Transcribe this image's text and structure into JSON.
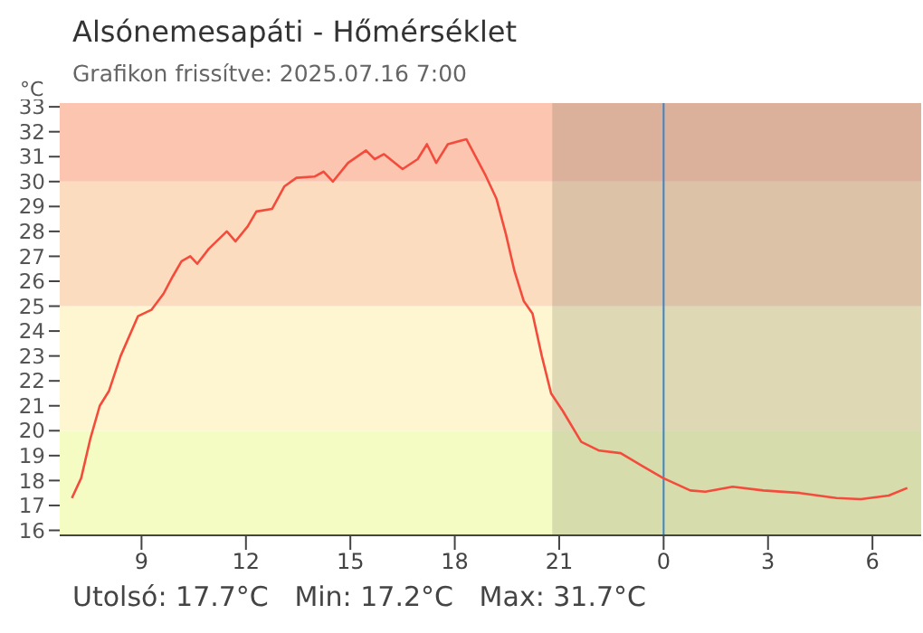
{
  "chart_data": {
    "type": "line",
    "title": "Alsónemesapáti - Hőmérséklet",
    "subtitle": "Grafikon frissítve: 2025.07.16 7:00",
    "ylabel": "°C",
    "annotations": [
      "Utolsó: 17.7°C   Min: 17.2°C   Max: 31.7°C"
    ],
    "x": [
      "2025-07-15T07:00",
      "2025-07-15T07:16",
      "2025-07-15T07:32",
      "2025-07-15T07:48",
      "2025-07-15T08:04",
      "2025-07-15T08:24",
      "2025-07-15T08:54",
      "2025-07-15T09:17",
      "2025-07-15T09:38",
      "2025-07-15T09:54",
      "2025-07-15T10:09",
      "2025-07-15T10:24",
      "2025-07-15T10:36",
      "2025-07-15T10:56",
      "2025-07-15T11:27",
      "2025-07-15T11:42",
      "2025-07-15T12:03",
      "2025-07-15T12:18",
      "2025-07-15T12:45",
      "2025-07-15T13:06",
      "2025-07-15T13:27",
      "2025-07-15T13:58",
      "2025-07-15T14:14",
      "2025-07-15T14:30",
      "2025-07-15T14:56",
      "2025-07-15T15:27",
      "2025-07-15T15:42",
      "2025-07-15T15:58",
      "2025-07-15T16:14",
      "2025-07-15T16:30",
      "2025-07-15T16:56",
      "2025-07-15T17:12",
      "2025-07-15T17:28",
      "2025-07-15T17:48",
      "2025-07-15T18:20",
      "2025-07-15T18:52",
      "2025-07-15T19:12",
      "2025-07-15T19:28",
      "2025-07-15T19:43",
      "2025-07-15T19:59",
      "2025-07-15T20:14",
      "2025-07-15T20:30",
      "2025-07-15T20:46",
      "2025-07-15T21:06",
      "2025-07-15T21:38",
      "2025-07-15T22:09",
      "2025-07-15T22:46",
      "2025-07-15T23:22",
      "2025-07-15T23:59",
      "2025-07-16T00:46",
      "2025-07-16T01:12",
      "2025-07-16T01:59",
      "2025-07-16T02:52",
      "2025-07-16T03:55",
      "2025-07-16T04:58",
      "2025-07-16T05:40",
      "2025-07-16T06:28",
      "2025-07-16T07:00"
    ],
    "series": [
      {
        "color": "#f44c3c",
        "values": [
          17.3,
          18.1,
          19.7,
          21.0,
          21.6,
          23.0,
          24.6,
          24.85,
          25.5,
          26.2,
          26.8,
          27.0,
          26.7,
          27.3,
          28.0,
          27.6,
          28.2,
          28.8,
          28.9,
          29.8,
          30.15,
          30.2,
          30.4,
          30.0,
          30.75,
          31.25,
          30.9,
          31.1,
          30.8,
          30.5,
          30.9,
          31.5,
          30.75,
          31.5,
          31.7,
          30.3,
          29.3,
          27.9,
          26.4,
          25.2,
          24.7,
          23.0,
          21.5,
          20.8,
          19.55,
          19.2,
          19.1,
          18.6,
          18.1,
          17.6,
          17.55,
          17.75,
          17.6,
          17.5,
          17.3,
          17.25,
          17.4,
          17.7
        ]
      }
    ],
    "xlim": [
      "2025-07-15T06:39",
      "2025-07-16T07:24"
    ],
    "ylim": [
      15.8,
      33.15
    ],
    "xticks": [
      {
        "value": "2025-07-15T09:00",
        "label": "9"
      },
      {
        "value": "2025-07-15T12:00",
        "label": "12"
      },
      {
        "value": "2025-07-15T15:00",
        "label": "15"
      },
      {
        "value": "2025-07-15T18:00",
        "label": "18"
      },
      {
        "value": "2025-07-15T21:00",
        "label": "21"
      },
      {
        "value": "2025-07-16T00:00",
        "label": "0"
      },
      {
        "value": "2025-07-16T03:00",
        "label": "3"
      },
      {
        "value": "2025-07-16T06:00",
        "label": "6"
      }
    ],
    "yticks": [
      16,
      17,
      18,
      19,
      20,
      21,
      22,
      23,
      24,
      25,
      26,
      27,
      28,
      29,
      30,
      31,
      32,
      33
    ],
    "bands": [
      {
        "axis": "y",
        "from": 15.8,
        "to": 20,
        "color": "#f4fcc4"
      },
      {
        "axis": "y",
        "from": 20,
        "to": 25,
        "color": "#fef6d0"
      },
      {
        "axis": "y",
        "from": 25,
        "to": 30,
        "color": "#fcdcbf"
      },
      {
        "axis": "y",
        "from": 30,
        "to": 33.15,
        "color": "#fcc5b0"
      },
      {
        "axis": "x",
        "from": "2025-07-15T20:48",
        "to": "2025-07-16T07:24",
        "color": "#6e6e50"
      }
    ],
    "ref_lines": [
      {
        "axis": "x",
        "value": "2025-07-16T00:00",
        "color": "#3a86c8"
      }
    ],
    "grid": false,
    "legend": false,
    "marker": "none",
    "line_style": "solid"
  }
}
